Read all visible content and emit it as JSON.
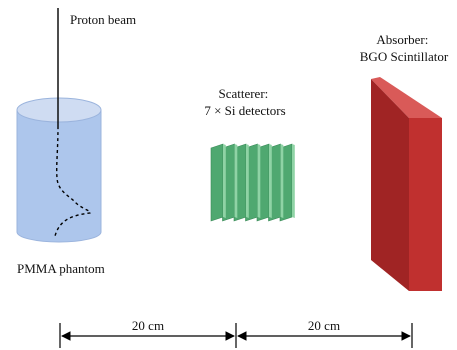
{
  "labels": {
    "beam": "Proton beam",
    "phantom": "PMMA phantom",
    "scatterer_line1": "Scatterer:",
    "scatterer_line2": "7 × Si detectors",
    "absorber_line1": "Absorber:",
    "absorber_line2": "BGO Scintillator",
    "distance_1": "20 cm",
    "distance_2": "20 cm"
  },
  "scatterer_layer_count": 7,
  "colors": {
    "phantom_body": "#adc6ec",
    "phantom_top": "#cfdcf2",
    "scatterer_face": "#4fa870",
    "scatterer_top": "#8fd3a5",
    "absorber_front": "#c0302f",
    "absorber_side": "#a02424",
    "absorber_top": "#d95a58",
    "line": "#000000"
  },
  "icons": {
    "phantom": "cylinder",
    "scatterer": "detector-stack",
    "absorber": "scintillator-block"
  }
}
